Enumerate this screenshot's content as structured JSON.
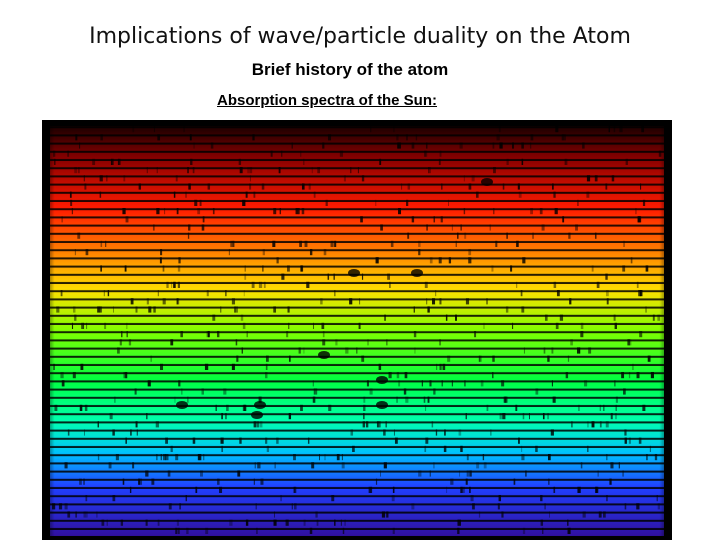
{
  "slide": {
    "title": "Implications of wave/particle duality on the Atom",
    "subtitle": "Brief history of the atom",
    "caption": "Absorption spectra of the Sun:"
  }
}
